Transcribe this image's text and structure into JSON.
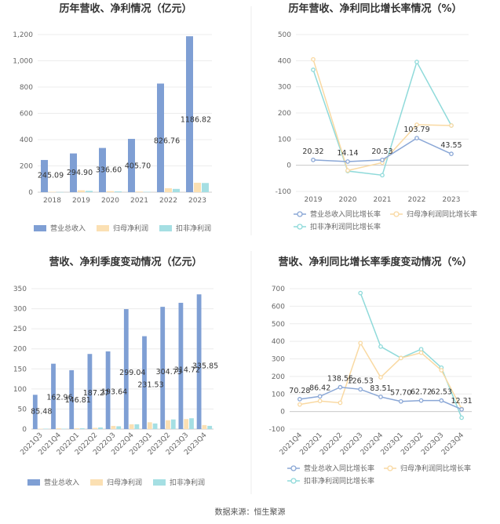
{
  "footer": {
    "source": "数据来源：恒生聚源"
  },
  "chart_data": [
    {
      "id": "annual_revenue_profit",
      "type": "bar",
      "title": "历年营收、净利情况（亿元）",
      "categories": [
        "2018",
        "2019",
        "2020",
        "2021",
        "2022",
        "2023"
      ],
      "series": [
        {
          "name": "营业总收入",
          "values": [
            245.09,
            294.9,
            336.6,
            405.7,
            826.76,
            1186.82
          ],
          "color": "#7f9fd4"
        },
        {
          "name": "归母净利润",
          "values": [
            3,
            14,
            8,
            5,
            30,
            72
          ],
          "color": "#fbe0b3"
        },
        {
          "name": "扣非净利润",
          "values": [
            1,
            10,
            6,
            3,
            25,
            70
          ],
          "color": "#a5dfe3"
        }
      ],
      "data_labels": [
        "245.09",
        "294.90",
        "336.60",
        "405.70",
        "826.76",
        "1186.82"
      ],
      "ylim": [
        0,
        1200
      ],
      "yticks": [
        "0",
        "200",
        "400",
        "600",
        "800",
        "1,000",
        "1,200"
      ],
      "ytick_values": [
        0,
        200,
        400,
        600,
        800,
        1000,
        1200
      ],
      "grid": true,
      "legend_position": "bottom"
    },
    {
      "id": "annual_growth",
      "type": "line",
      "title": "历年营收、净利同比增长率情况（%）",
      "categories": [
        "2019",
        "2020",
        "2021",
        "2022",
        "2023"
      ],
      "series": [
        {
          "name": "营业总收入同比增长率",
          "values": [
            20.32,
            14.14,
            20.53,
            103.79,
            43.55
          ],
          "color": "#8aa7d6",
          "labels": [
            "20.32",
            "14.14",
            "20.53",
            "103.79",
            "43.55"
          ]
        },
        {
          "name": "归母净利润同比增长率",
          "values": [
            405,
            -20,
            10,
            155,
            152
          ],
          "color": "#f9d9a2"
        },
        {
          "name": "扣非净利润同比增长率",
          "values": [
            365,
            -22,
            -38,
            395,
            152
          ],
          "color": "#8fdada"
        }
      ],
      "ylim": [
        -100,
        500
      ],
      "yticks": [
        "-100",
        "0",
        "100",
        "200",
        "300",
        "400",
        "500"
      ],
      "ytick_values": [
        -100,
        0,
        100,
        200,
        300,
        400,
        500
      ],
      "grid": true,
      "legend_position": "bottom"
    },
    {
      "id": "quarterly_revenue_profit",
      "type": "bar",
      "title": "营收、净利季度变动情况（亿元）",
      "categories": [
        "2021Q3",
        "2021Q4",
        "2022Q1",
        "2022Q2",
        "2022Q3",
        "2022Q4",
        "2023Q1",
        "2023Q2",
        "2023Q3",
        "2023Q4"
      ],
      "series": [
        {
          "name": "营业总收入",
          "values": [
            85.48,
            162.96,
            146.81,
            187.27,
            193.64,
            299.04,
            231.53,
            304.73,
            314.72,
            335.85
          ],
          "color": "#7f9fd4"
        },
        {
          "name": "归母净利润",
          "values": [
            1,
            2,
            2,
            3,
            8,
            12,
            17,
            22,
            25,
            10
          ],
          "color": "#fbe0b3"
        },
        {
          "name": "扣非净利润",
          "values": [
            1,
            1,
            2,
            4,
            7,
            12,
            14,
            24,
            27,
            8
          ],
          "color": "#a5dfe3"
        }
      ],
      "data_labels": [
        "85.48",
        "162.96",
        "146.81",
        "187.27",
        "193.64",
        "299.04",
        "231.53",
        "304.73",
        "314.72",
        "335.85"
      ],
      "ylim": [
        0,
        350
      ],
      "yticks": [
        "0",
        "50",
        "100",
        "150",
        "200",
        "250",
        "300",
        "350"
      ],
      "ytick_values": [
        0,
        50,
        100,
        150,
        200,
        250,
        300,
        350
      ],
      "grid": true,
      "legend_position": "bottom"
    },
    {
      "id": "quarterly_growth",
      "type": "line",
      "title": "营收、净利同比增长率季度变动情况（%）",
      "categories": [
        "2021Q4",
        "2022Q1",
        "2022Q2",
        "2022Q3",
        "2022Q4",
        "2023Q1",
        "2023Q2",
        "2023Q3",
        "2023Q4"
      ],
      "series": [
        {
          "name": "营业总收入同比增长率",
          "values": [
            70.28,
            86.42,
            138.55,
            126.53,
            83.51,
            57.7,
            62.72,
            62.53,
            12.31
          ],
          "color": "#8aa7d6",
          "labels": [
            "70.28",
            "86.42",
            "138.55",
            "126.53",
            "83.51",
            "57.70",
            "62.72",
            "62.53",
            "12.31"
          ]
        },
        {
          "name": "归母净利润同比增长率",
          "values": [
            40,
            60,
            50,
            390,
            195,
            305,
            335,
            235,
            15
          ],
          "color": "#f9d9a2"
        },
        {
          "name": "扣非净利润同比增长率",
          "values": [
            null,
            null,
            null,
            675,
            370,
            305,
            355,
            250,
            -35
          ],
          "color": "#8fdada"
        }
      ],
      "ylim": [
        -100,
        700
      ],
      "yticks": [
        "-100",
        "0",
        "100",
        "200",
        "300",
        "400",
        "500",
        "600",
        "700"
      ],
      "ytick_values": [
        -100,
        0,
        100,
        200,
        300,
        400,
        500,
        600,
        700
      ],
      "grid": true,
      "legend_position": "bottom"
    }
  ]
}
